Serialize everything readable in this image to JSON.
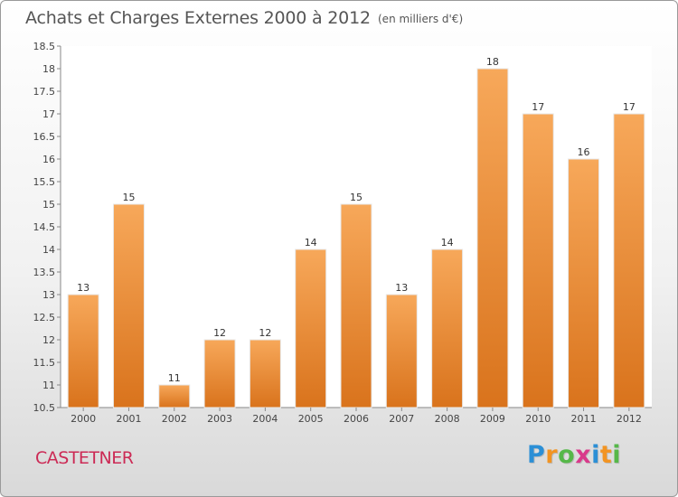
{
  "chart_data": {
    "type": "bar",
    "title": "Achats et Charges Externes 2000 à 2012",
    "subtitle": "(en milliers d'€)",
    "categories": [
      "2000",
      "2001",
      "2002",
      "2003",
      "2004",
      "2005",
      "2006",
      "2007",
      "2008",
      "2009",
      "2010",
      "2011",
      "2012"
    ],
    "values": [
      13,
      15,
      11,
      12,
      12,
      14,
      15,
      13,
      14,
      18,
      17,
      16,
      17
    ],
    "ylim": [
      10.5,
      18.5
    ],
    "yticks": [
      "10.5",
      "11",
      "11.5",
      "12",
      "12.5",
      "13",
      "13.5",
      "14",
      "14.5",
      "15",
      "15.5",
      "16",
      "16.5",
      "17",
      "17.5",
      "18",
      "18.5"
    ],
    "grid": false,
    "bar_color_top": "#f7a85a",
    "bar_color_bottom": "#d9731c"
  },
  "footer": {
    "commune": "CASTETNER",
    "logo_letters": [
      "P",
      "r",
      "o",
      "x",
      "i",
      "t",
      "i"
    ],
    "logo_colors": [
      "#2b8fd6",
      "#f29422",
      "#56b849",
      "#d93a8b",
      "#2b8fd6",
      "#f29422",
      "#56b849"
    ]
  }
}
